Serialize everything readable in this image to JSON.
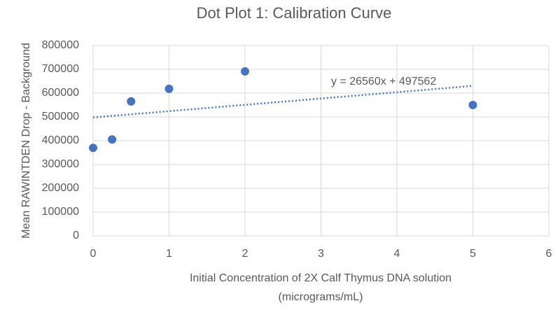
{
  "chart_data": {
    "type": "scatter",
    "title": "Dot Plot 1: Calibration Curve",
    "x_label": [
      "Initial Concentration of 2X Calf Thymus DNA solution",
      "(micrograms/mL)"
    ],
    "y_label": "Mean RAWINTDEN Drop - Background",
    "series": [
      {
        "color": "#4472c4",
        "x": [
          0,
          0.25,
          0.5,
          1,
          2,
          5
        ],
        "values": [
          370000,
          405000,
          565000,
          618000,
          691000,
          550000
        ]
      }
    ],
    "trendline": {
      "label": "y = 26560x + 497562",
      "slope": 26560,
      "intercept": 497562,
      "color": "#4472c4"
    },
    "xlim": [
      0,
      6
    ],
    "xticks": [
      0,
      1,
      2,
      3,
      4,
      5,
      6
    ],
    "ylim": [
      0,
      800000
    ],
    "yticks": [
      0,
      100000,
      200000,
      300000,
      400000,
      500000,
      600000,
      700000,
      800000
    ],
    "grid": true
  }
}
